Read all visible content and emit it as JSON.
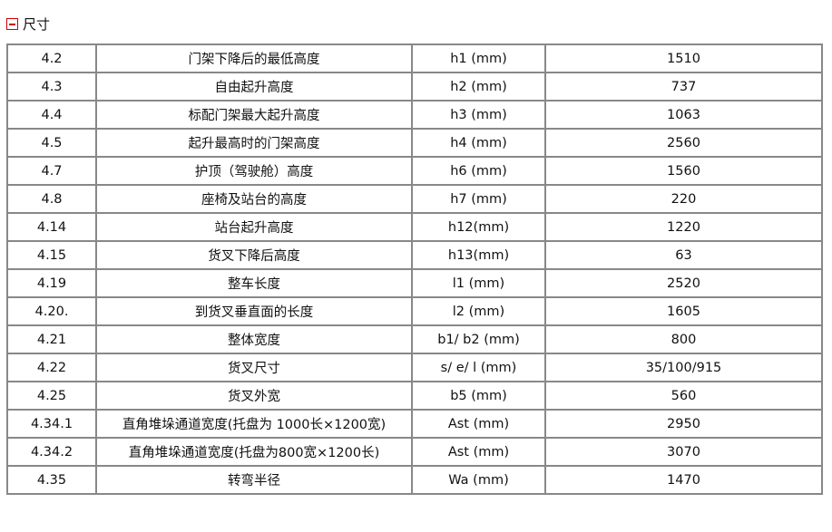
{
  "section": {
    "title": "尺寸",
    "toggle_icon": "collapse-minus-icon",
    "accent": "#cc0000"
  },
  "rows": [
    [
      "4.2",
      "门架下降后的最低高度",
      "h1 (mm)",
      "1510"
    ],
    [
      "4.3",
      "自由起升高度",
      "h2 (mm)",
      "737"
    ],
    [
      "4.4",
      "标配门架最大起升高度",
      "h3 (mm)",
      "1063"
    ],
    [
      "4.5",
      "起升最高时的门架高度",
      "h4 (mm)",
      "2560"
    ],
    [
      "4.7",
      "护顶（驾驶舱）高度",
      "h6 (mm)",
      "1560"
    ],
    [
      "4.8",
      "座椅及站台的高度",
      "h7 (mm)",
      "220"
    ],
    [
      "4.14",
      "站台起升高度",
      "h12(mm)",
      "1220"
    ],
    [
      "4.15",
      "货叉下降后高度",
      "h13(mm)",
      "63"
    ],
    [
      "4.19",
      "整车长度",
      "l1 (mm)",
      "2520"
    ],
    [
      "4.20.",
      "到货叉垂直面的长度",
      "l2 (mm)",
      "1605"
    ],
    [
      "4.21",
      "整体宽度",
      "b1/ b2 (mm)",
      "800"
    ],
    [
      "4.22",
      "货叉尺寸",
      "s/ e/ l (mm)",
      "35/100/915"
    ],
    [
      "4.25",
      "货叉外宽",
      "b5 (mm)",
      "560"
    ],
    [
      "4.34.1",
      "直角堆垛通道宽度(托盘为 1000长×1200宽)",
      "Ast (mm)",
      "2950"
    ],
    [
      "4.34.2",
      "直角堆垛通道宽度(托盘为800宽×1200长)",
      "Ast (mm)",
      "3070"
    ],
    [
      "4.35",
      "转弯半径",
      "Wa (mm)",
      "1470"
    ]
  ]
}
